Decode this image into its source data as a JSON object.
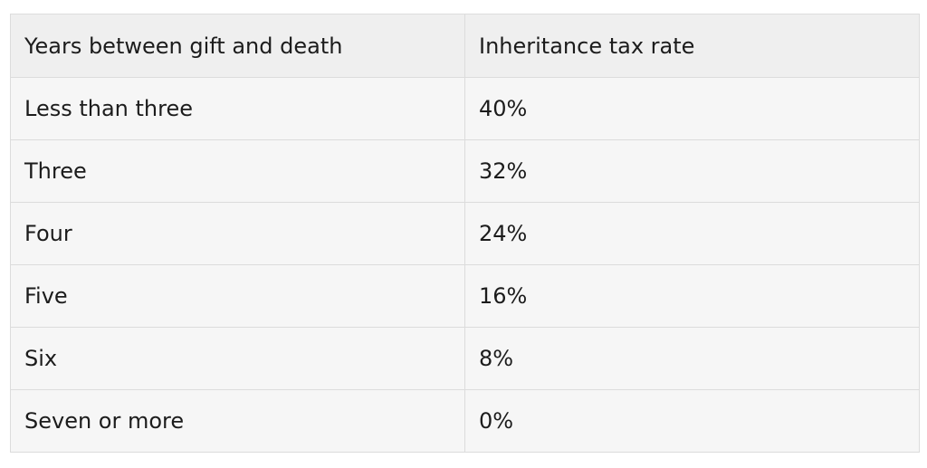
{
  "table": {
    "headers": [
      "Years between gift and death",
      "Inheritance tax rate"
    ],
    "rows": [
      {
        "years": "Less than three",
        "rate": "40%"
      },
      {
        "years": "Three",
        "rate": "32%"
      },
      {
        "years": "Four",
        "rate": "24%"
      },
      {
        "years": "Five",
        "rate": "16%"
      },
      {
        "years": "Six",
        "rate": "8%"
      },
      {
        "years": "Seven or more",
        "rate": "0%"
      }
    ]
  }
}
